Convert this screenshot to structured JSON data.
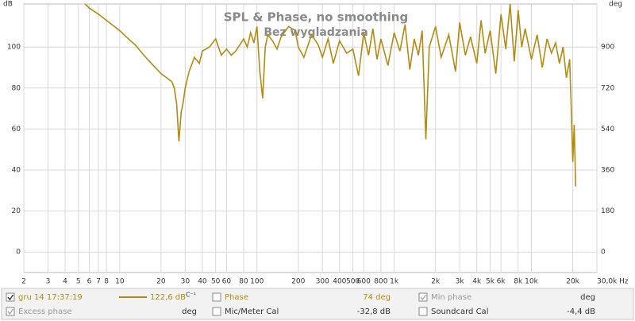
{
  "chart_data": {
    "type": "line",
    "title": "SPL & Phase, no smoothing",
    "subtitle": "Bez wygladzania",
    "y_label": "dB",
    "y2_label": "deg",
    "xscale": "log",
    "grid": true,
    "xlim": [
      2,
      30000
    ],
    "ylim": [
      -10,
      121
    ],
    "y2lim": [
      -90,
      1089
    ],
    "xticks": [
      2,
      3,
      4,
      5,
      6,
      7,
      8,
      10,
      20,
      30,
      40,
      50,
      60,
      80,
      100,
      200,
      300,
      400,
      500,
      600,
      800,
      {
        "value": 1000,
        "label": "1k"
      },
      {
        "value": 2000,
        "label": "2k"
      },
      {
        "value": 3000,
        "label": "3k"
      },
      {
        "value": 4000,
        "label": "4k"
      },
      {
        "value": 5000,
        "label": "5k"
      },
      {
        "value": 6000,
        "label": "6k"
      },
      {
        "value": 8000,
        "label": "8k"
      },
      {
        "value": 10000,
        "label": "10k"
      },
      {
        "value": 20000,
        "label": "20k"
      },
      {
        "value": 30000,
        "label": "30,0k Hz"
      }
    ],
    "yticks": [
      0,
      20,
      40,
      60,
      80,
      100
    ],
    "y2ticks": [
      0,
      180,
      360,
      540,
      720,
      900
    ],
    "series": [
      {
        "name": "gru 14 17:37:19",
        "color": "#b38b12",
        "x": [
          5.6,
          6,
          7,
          8,
          10,
          12,
          13,
          15,
          17,
          20,
          22,
          24,
          25,
          26,
          27,
          28,
          29,
          30,
          32,
          35,
          38,
          40,
          45,
          50,
          55,
          60,
          65,
          70,
          80,
          85,
          90,
          95,
          100,
          105,
          110,
          115,
          120,
          130,
          140,
          150,
          170,
          190,
          200,
          220,
          250,
          280,
          300,
          330,
          360,
          400,
          450,
          500,
          550,
          600,
          650,
          700,
          750,
          800,
          900,
          1000,
          1100,
          1200,
          1300,
          1400,
          1500,
          1600,
          1700,
          1800,
          2000,
          2200,
          2500,
          2800,
          3000,
          3300,
          3600,
          4000,
          4300,
          4600,
          5000,
          5500,
          6000,
          6500,
          7000,
          7500,
          8000,
          8500,
          9000,
          10000,
          11000,
          12000,
          13000,
          14000,
          15000,
          16000,
          17000,
          18000,
          19000,
          19500,
          20000,
          20500,
          21000
        ],
        "values": [
          121,
          119,
          116,
          113,
          108,
          103,
          101,
          96,
          92,
          87,
          85,
          83,
          80,
          72,
          54,
          68,
          73,
          80,
          88,
          95,
          92,
          98,
          100,
          104,
          96,
          99,
          96,
          98,
          104,
          100,
          107,
          102,
          110,
          88,
          75,
          100,
          106,
          103,
          99,
          105,
          110,
          108,
          100,
          95,
          106,
          101,
          95,
          104,
          92,
          103,
          97,
          99,
          86,
          107,
          96,
          109,
          94,
          104,
          91,
          107,
          98,
          111,
          89,
          104,
          96,
          108,
          55,
          100,
          110,
          95,
          106,
          88,
          112,
          96,
          105,
          92,
          113,
          97,
          108,
          87,
          116,
          99,
          121,
          93,
          118,
          100,
          109,
          94,
          106,
          90,
          104,
          97,
          102,
          92,
          100,
          85,
          94,
          70,
          44,
          62,
          32
        ]
      }
    ],
    "panel": [
      {
        "label": "gru 14 17:37:19",
        "value": "122,6 dB",
        "suffix": "C⁻¹",
        "checked": true,
        "enabled": true,
        "swatch": true
      },
      {
        "label": "Phase",
        "value": "74 deg",
        "checked": false,
        "enabled": true,
        "swatch": false
      },
      {
        "label": "Min phase",
        "value": "deg",
        "checked": true,
        "enabled": false,
        "swatch": false
      },
      {
        "label": "Excess phase",
        "value": "deg",
        "checked": true,
        "enabled": false,
        "swatch": false
      },
      {
        "label": "Mic/Meter Cal",
        "value": "-32,8 dB",
        "checked": false,
        "enabled": true,
        "swatch": false
      },
      {
        "label": "Soundcard Cal",
        "value": "-4,4 dB",
        "checked": false,
        "enabled": true,
        "swatch": false
      }
    ]
  }
}
